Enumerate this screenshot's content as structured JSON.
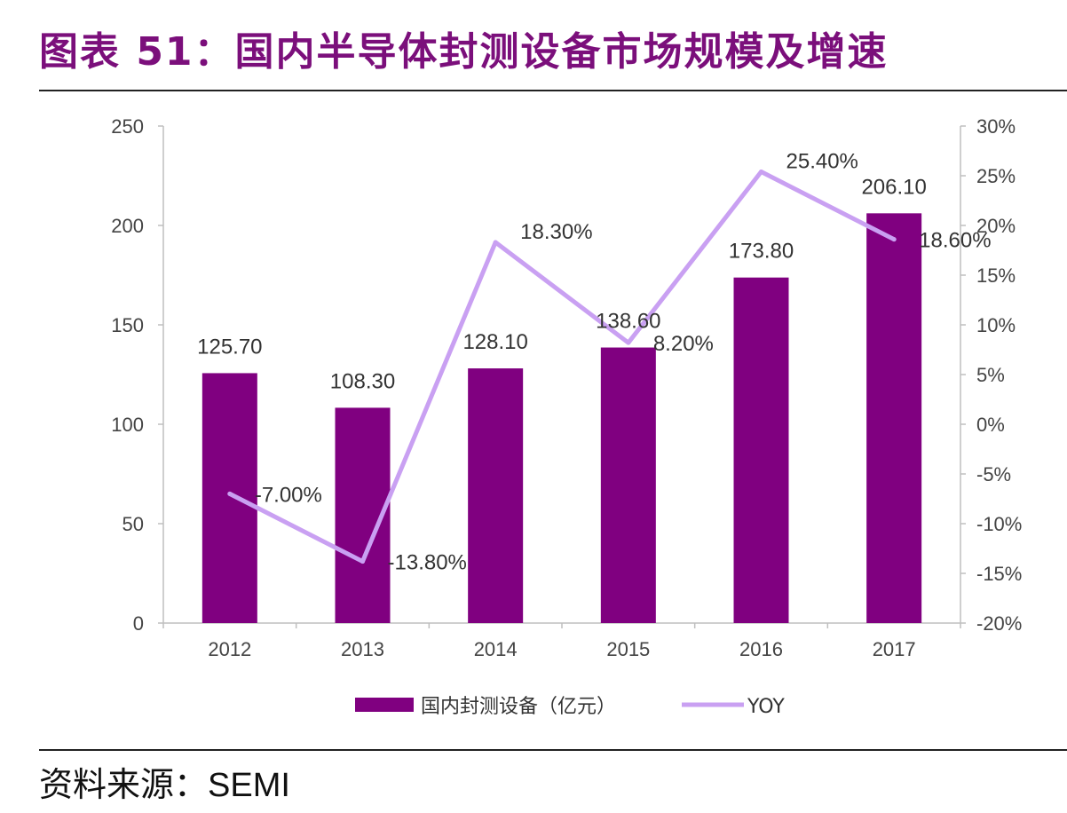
{
  "title": "图表 51：国内半导体封测设备市场规模及增速",
  "source": {
    "label": "资料来源：",
    "value": "SEMI"
  },
  "chart_data": {
    "type": "bar",
    "categories": [
      "2012",
      "2013",
      "2014",
      "2015",
      "2016",
      "2017"
    ],
    "series": [
      {
        "name": "国内封测设备（亿元）",
        "type": "bar",
        "axis": "left",
        "values": [
          125.7,
          108.3,
          128.1,
          138.6,
          173.8,
          206.1
        ],
        "labels": [
          "125.70",
          "108.30",
          "128.10",
          "138.60",
          "173.80",
          "206.10"
        ],
        "color": "#800080"
      },
      {
        "name": "YOY",
        "type": "line",
        "axis": "right",
        "values": [
          -7.0,
          -13.8,
          18.3,
          8.2,
          25.4,
          18.6
        ],
        "labels": [
          "-7.00%",
          "-13.80%",
          "18.30%",
          "8.20%",
          "25.40%",
          "18.60%"
        ],
        "color": "#c9a0f2"
      }
    ],
    "y_left": {
      "min": 0,
      "max": 250,
      "step": 50,
      "ticks": [
        "0",
        "50",
        "100",
        "150",
        "200",
        "250"
      ]
    },
    "y_right": {
      "min": -20,
      "max": 30,
      "step": 5,
      "ticks": [
        "-20%",
        "-15%",
        "-10%",
        "-5%",
        "0%",
        "5%",
        "10%",
        "15%",
        "20%",
        "25%",
        "30%"
      ]
    },
    "legend": {
      "position": "bottom"
    },
    "grid": false
  }
}
